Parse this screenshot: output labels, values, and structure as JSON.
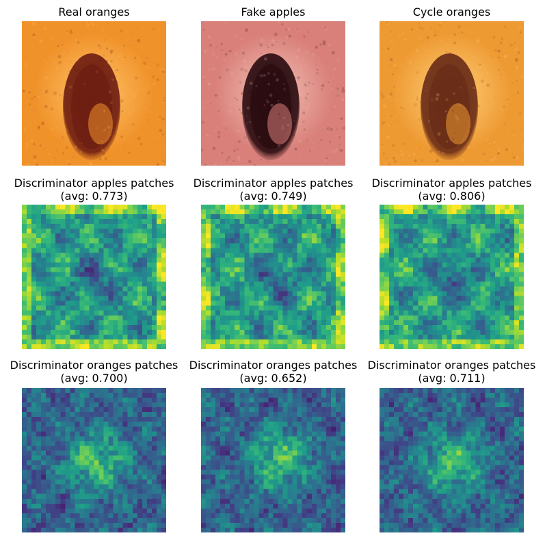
{
  "panels": [
    {
      "title": "Real oranges",
      "kind": "photo",
      "tint": "orange",
      "colors": {
        "base": "#f0922a",
        "hi": "#ffc46a",
        "dark": "#6e1e12"
      }
    },
    {
      "title": "Fake apples",
      "kind": "photo",
      "tint": "apple",
      "colors": {
        "base": "#d9807a",
        "hi": "#f3c2b6",
        "dark": "#2a0c10"
      }
    },
    {
      "title": "Cycle oranges",
      "kind": "photo",
      "tint": "orange",
      "colors": {
        "base": "#ee9a33",
        "hi": "#ffd07a",
        "dark": "#6a2d18"
      }
    },
    {
      "title": "Discriminator apples patches",
      "subtitle": "(avg: 0.773)",
      "kind": "heatmap",
      "avg": 0.773
    },
    {
      "title": "Discriminator apples patches",
      "subtitle": "(avg: 0.749)",
      "kind": "heatmap",
      "avg": 0.749
    },
    {
      "title": "Discriminator apples patches",
      "subtitle": "(avg: 0.806)",
      "kind": "heatmap",
      "avg": 0.806
    },
    {
      "title": "Discriminator oranges patches",
      "subtitle": "(avg: 0.700)",
      "kind": "heatmap",
      "avg": 0.7
    },
    {
      "title": "Discriminator oranges patches",
      "subtitle": "(avg: 0.652)",
      "kind": "heatmap",
      "avg": 0.652
    },
    {
      "title": "Discriminator oranges patches",
      "subtitle": "(avg: 0.711)",
      "kind": "heatmap",
      "avg": 0.711
    }
  ],
  "colormap": "viridis"
}
